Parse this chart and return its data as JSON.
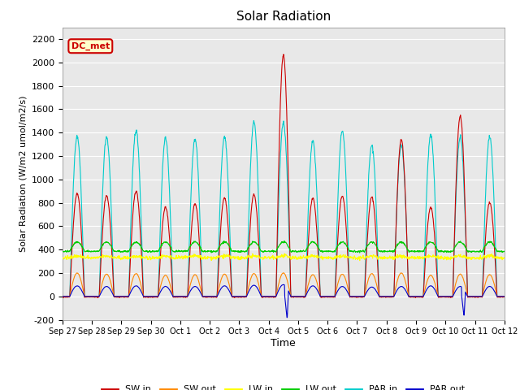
{
  "title": "Solar Radiation",
  "xlabel": "Time",
  "ylabel": "Solar Radiation (W/m2 umol/m2/s)",
  "ylim": [
    -200,
    2300
  ],
  "yticks": [
    -200,
    0,
    200,
    400,
    600,
    800,
    1000,
    1200,
    1400,
    1600,
    1800,
    2000,
    2200
  ],
  "xtick_labels": [
    "Sep 27",
    "Sep 28",
    "Sep 29",
    "Sep 30",
    "Oct 1",
    "Oct 2",
    "Oct 3",
    "Oct 4",
    "Oct 5",
    "Oct 6",
    "Oct 7",
    "Oct 8",
    "Oct 9",
    "Oct 10",
    "Oct 11",
    "Oct 12"
  ],
  "legend_label": "DC_met",
  "legend_box_color": "#ffffcc",
  "legend_box_border": "#cc0000",
  "series": {
    "SW_in": {
      "color": "#cc0000",
      "label": "SW in"
    },
    "SW_out": {
      "color": "#ff8800",
      "label": "SW out"
    },
    "LW_in": {
      "color": "#ffff00",
      "label": "LW in"
    },
    "LW_out": {
      "color": "#00cc00",
      "label": "LW out"
    },
    "PAR_in": {
      "color": "#00cccc",
      "label": "PAR in"
    },
    "PAR_out": {
      "color": "#0000cc",
      "label": "PAR out"
    }
  },
  "fig_bg_color": "#ffffff",
  "plot_bg_color": "#e8e8e8",
  "grid_color": "#ffffff",
  "n_days": 15,
  "points_per_day": 96,
  "sw_in_peaks": [
    880,
    860,
    900,
    760,
    790,
    840,
    870,
    2060,
    840,
    860,
    850,
    1340,
    760,
    1540,
    800
  ],
  "sw_out_peaks": [
    200,
    190,
    195,
    180,
    185,
    190,
    195,
    200,
    185,
    190,
    195,
    200,
    180,
    190,
    185
  ],
  "lw_in_base": 330,
  "lw_out_base": 385,
  "par_in_peaks": [
    1370,
    1360,
    1420,
    1350,
    1340,
    1360,
    1490,
    1480,
    1330,
    1420,
    1290,
    1290,
    1380,
    1360,
    1360
  ],
  "par_out_peaks": [
    90,
    85,
    90,
    85,
    85,
    90,
    95,
    100,
    90,
    85,
    80,
    85,
    90,
    85,
    85
  ],
  "figsize": [
    6.4,
    4.8
  ],
  "dpi": 100
}
